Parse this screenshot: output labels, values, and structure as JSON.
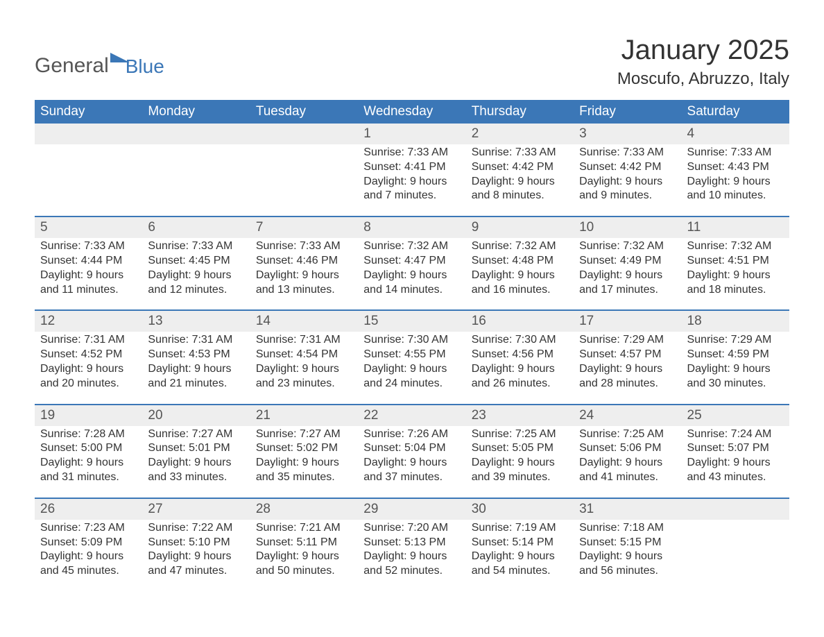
{
  "logo": {
    "line1": "General",
    "line2": "Blue"
  },
  "title": {
    "month": "January 2025",
    "location": "Moscufo, Abruzzo, Italy"
  },
  "colors": {
    "header_bg": "#3b77b7",
    "header_text": "#ffffff",
    "daynum_bg": "#eeeeee",
    "border_top": "#3b77b7",
    "body_text": "#333333",
    "logo_blue": "#3b77b7",
    "logo_gray": "#555555",
    "page_bg": "#ffffff"
  },
  "fonts": {
    "title_month_size": 40,
    "title_location_size": 24,
    "dow_size": 19,
    "daynum_size": 19,
    "body_size": 16
  },
  "days_of_week": [
    "Sunday",
    "Monday",
    "Tuesday",
    "Wednesday",
    "Thursday",
    "Friday",
    "Saturday"
  ],
  "weeks": [
    {
      "nums": [
        "",
        "",
        "",
        "1",
        "2",
        "3",
        "4"
      ],
      "cells": [
        {
          "sunrise": "",
          "sunset": "",
          "daylight1": "",
          "daylight2": ""
        },
        {
          "sunrise": "",
          "sunset": "",
          "daylight1": "",
          "daylight2": ""
        },
        {
          "sunrise": "",
          "sunset": "",
          "daylight1": "",
          "daylight2": ""
        },
        {
          "sunrise": "Sunrise: 7:33 AM",
          "sunset": "Sunset: 4:41 PM",
          "daylight1": "Daylight: 9 hours",
          "daylight2": "and 7 minutes."
        },
        {
          "sunrise": "Sunrise: 7:33 AM",
          "sunset": "Sunset: 4:42 PM",
          "daylight1": "Daylight: 9 hours",
          "daylight2": "and 8 minutes."
        },
        {
          "sunrise": "Sunrise: 7:33 AM",
          "sunset": "Sunset: 4:42 PM",
          "daylight1": "Daylight: 9 hours",
          "daylight2": "and 9 minutes."
        },
        {
          "sunrise": "Sunrise: 7:33 AM",
          "sunset": "Sunset: 4:43 PM",
          "daylight1": "Daylight: 9 hours",
          "daylight2": "and 10 minutes."
        }
      ]
    },
    {
      "nums": [
        "5",
        "6",
        "7",
        "8",
        "9",
        "10",
        "11"
      ],
      "cells": [
        {
          "sunrise": "Sunrise: 7:33 AM",
          "sunset": "Sunset: 4:44 PM",
          "daylight1": "Daylight: 9 hours",
          "daylight2": "and 11 minutes."
        },
        {
          "sunrise": "Sunrise: 7:33 AM",
          "sunset": "Sunset: 4:45 PM",
          "daylight1": "Daylight: 9 hours",
          "daylight2": "and 12 minutes."
        },
        {
          "sunrise": "Sunrise: 7:33 AM",
          "sunset": "Sunset: 4:46 PM",
          "daylight1": "Daylight: 9 hours",
          "daylight2": "and 13 minutes."
        },
        {
          "sunrise": "Sunrise: 7:32 AM",
          "sunset": "Sunset: 4:47 PM",
          "daylight1": "Daylight: 9 hours",
          "daylight2": "and 14 minutes."
        },
        {
          "sunrise": "Sunrise: 7:32 AM",
          "sunset": "Sunset: 4:48 PM",
          "daylight1": "Daylight: 9 hours",
          "daylight2": "and 16 minutes."
        },
        {
          "sunrise": "Sunrise: 7:32 AM",
          "sunset": "Sunset: 4:49 PM",
          "daylight1": "Daylight: 9 hours",
          "daylight2": "and 17 minutes."
        },
        {
          "sunrise": "Sunrise: 7:32 AM",
          "sunset": "Sunset: 4:51 PM",
          "daylight1": "Daylight: 9 hours",
          "daylight2": "and 18 minutes."
        }
      ]
    },
    {
      "nums": [
        "12",
        "13",
        "14",
        "15",
        "16",
        "17",
        "18"
      ],
      "cells": [
        {
          "sunrise": "Sunrise: 7:31 AM",
          "sunset": "Sunset: 4:52 PM",
          "daylight1": "Daylight: 9 hours",
          "daylight2": "and 20 minutes."
        },
        {
          "sunrise": "Sunrise: 7:31 AM",
          "sunset": "Sunset: 4:53 PM",
          "daylight1": "Daylight: 9 hours",
          "daylight2": "and 21 minutes."
        },
        {
          "sunrise": "Sunrise: 7:31 AM",
          "sunset": "Sunset: 4:54 PM",
          "daylight1": "Daylight: 9 hours",
          "daylight2": "and 23 minutes."
        },
        {
          "sunrise": "Sunrise: 7:30 AM",
          "sunset": "Sunset: 4:55 PM",
          "daylight1": "Daylight: 9 hours",
          "daylight2": "and 24 minutes."
        },
        {
          "sunrise": "Sunrise: 7:30 AM",
          "sunset": "Sunset: 4:56 PM",
          "daylight1": "Daylight: 9 hours",
          "daylight2": "and 26 minutes."
        },
        {
          "sunrise": "Sunrise: 7:29 AM",
          "sunset": "Sunset: 4:57 PM",
          "daylight1": "Daylight: 9 hours",
          "daylight2": "and 28 minutes."
        },
        {
          "sunrise": "Sunrise: 7:29 AM",
          "sunset": "Sunset: 4:59 PM",
          "daylight1": "Daylight: 9 hours",
          "daylight2": "and 30 minutes."
        }
      ]
    },
    {
      "nums": [
        "19",
        "20",
        "21",
        "22",
        "23",
        "24",
        "25"
      ],
      "cells": [
        {
          "sunrise": "Sunrise: 7:28 AM",
          "sunset": "Sunset: 5:00 PM",
          "daylight1": "Daylight: 9 hours",
          "daylight2": "and 31 minutes."
        },
        {
          "sunrise": "Sunrise: 7:27 AM",
          "sunset": "Sunset: 5:01 PM",
          "daylight1": "Daylight: 9 hours",
          "daylight2": "and 33 minutes."
        },
        {
          "sunrise": "Sunrise: 7:27 AM",
          "sunset": "Sunset: 5:02 PM",
          "daylight1": "Daylight: 9 hours",
          "daylight2": "and 35 minutes."
        },
        {
          "sunrise": "Sunrise: 7:26 AM",
          "sunset": "Sunset: 5:04 PM",
          "daylight1": "Daylight: 9 hours",
          "daylight2": "and 37 minutes."
        },
        {
          "sunrise": "Sunrise: 7:25 AM",
          "sunset": "Sunset: 5:05 PM",
          "daylight1": "Daylight: 9 hours",
          "daylight2": "and 39 minutes."
        },
        {
          "sunrise": "Sunrise: 7:25 AM",
          "sunset": "Sunset: 5:06 PM",
          "daylight1": "Daylight: 9 hours",
          "daylight2": "and 41 minutes."
        },
        {
          "sunrise": "Sunrise: 7:24 AM",
          "sunset": "Sunset: 5:07 PM",
          "daylight1": "Daylight: 9 hours",
          "daylight2": "and 43 minutes."
        }
      ]
    },
    {
      "nums": [
        "26",
        "27",
        "28",
        "29",
        "30",
        "31",
        ""
      ],
      "cells": [
        {
          "sunrise": "Sunrise: 7:23 AM",
          "sunset": "Sunset: 5:09 PM",
          "daylight1": "Daylight: 9 hours",
          "daylight2": "and 45 minutes."
        },
        {
          "sunrise": "Sunrise: 7:22 AM",
          "sunset": "Sunset: 5:10 PM",
          "daylight1": "Daylight: 9 hours",
          "daylight2": "and 47 minutes."
        },
        {
          "sunrise": "Sunrise: 7:21 AM",
          "sunset": "Sunset: 5:11 PM",
          "daylight1": "Daylight: 9 hours",
          "daylight2": "and 50 minutes."
        },
        {
          "sunrise": "Sunrise: 7:20 AM",
          "sunset": "Sunset: 5:13 PM",
          "daylight1": "Daylight: 9 hours",
          "daylight2": "and 52 minutes."
        },
        {
          "sunrise": "Sunrise: 7:19 AM",
          "sunset": "Sunset: 5:14 PM",
          "daylight1": "Daylight: 9 hours",
          "daylight2": "and 54 minutes."
        },
        {
          "sunrise": "Sunrise: 7:18 AM",
          "sunset": "Sunset: 5:15 PM",
          "daylight1": "Daylight: 9 hours",
          "daylight2": "and 56 minutes."
        },
        {
          "sunrise": "",
          "sunset": "",
          "daylight1": "",
          "daylight2": ""
        }
      ]
    }
  ]
}
